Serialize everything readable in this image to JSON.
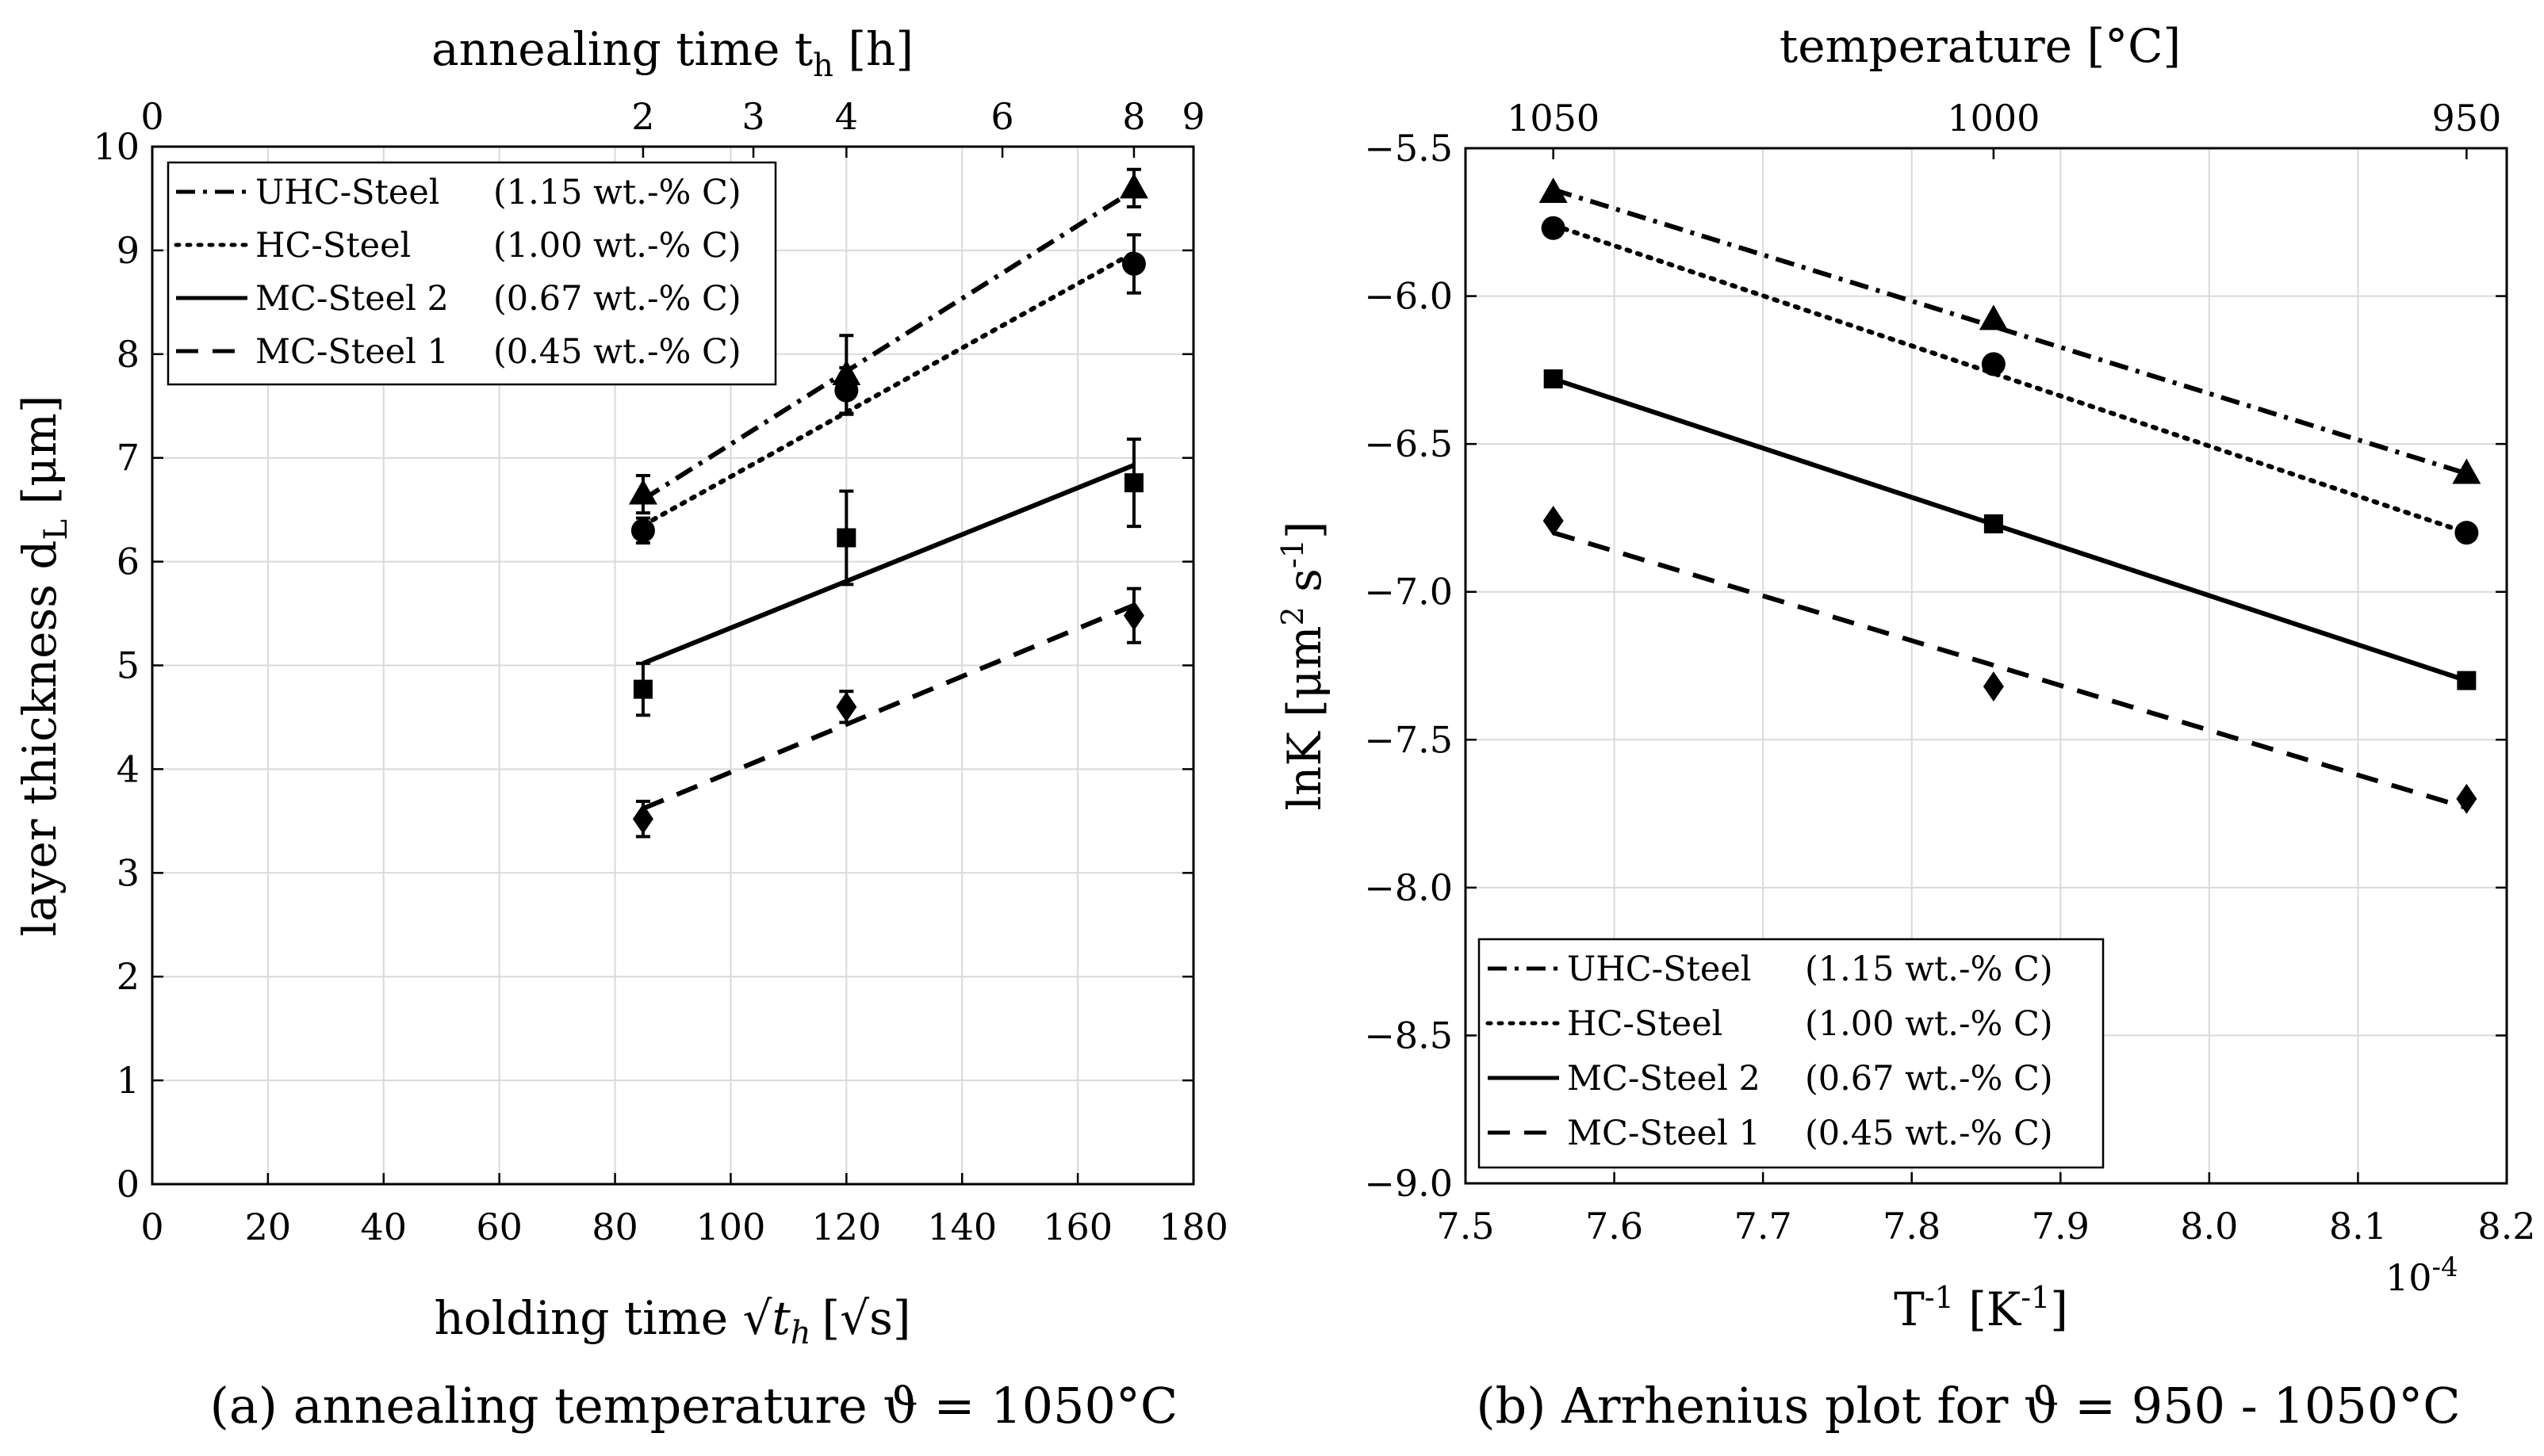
{
  "chart_data": [
    {
      "type": "line",
      "caption": "(a) annealing temperature ϑ = 1050°C",
      "xlabel_main": "holding time ",
      "xlabel_sqrt": "√",
      "xlabel_var": "t",
      "xlabel_sub": "h",
      "xlabel_unit": "[√s]",
      "ylabel_main": "layer thickness d",
      "ylabel_sub": "L",
      "ylabel_unit": " [μm]",
      "top_xlabel_main": "annealing time t",
      "top_xlabel_sub": "h",
      "top_xlabel_unit": " [h]",
      "xlim": [
        0,
        180
      ],
      "ylim": [
        0,
        10
      ],
      "x_ticks": [
        "0",
        "20",
        "40",
        "60",
        "80",
        "100",
        "120",
        "140",
        "160",
        "180"
      ],
      "y_ticks": [
        "0",
        "1",
        "2",
        "3",
        "4",
        "5",
        "6",
        "7",
        "8",
        "9",
        "10"
      ],
      "top_ticks": [
        {
          "label": "0",
          "x": 0
        },
        {
          "label": "2",
          "x": 84.85
        },
        {
          "label": "3",
          "x": 103.92
        },
        {
          "label": "4",
          "x": 120
        },
        {
          "label": "6",
          "x": 146.97
        },
        {
          "label": "8",
          "x": 169.71
        },
        {
          "label": "9",
          "x": 180
        }
      ],
      "legend": [
        {
          "name": "UHC-Steel",
          "comp": "(1.15 wt.-% C)",
          "style": "dashdot"
        },
        {
          "name": "HC-Steel",
          "comp": "(1.00 wt.-% C)",
          "style": "dotted"
        },
        {
          "name": "MC-Steel 2",
          "comp": "(0.67 wt.-% C)",
          "style": "solid"
        },
        {
          "name": "MC-Steel 1",
          "comp": "(0.45 wt.-% C)",
          "style": "dashed"
        }
      ],
      "series": [
        {
          "name": "UHC-Steel",
          "style": "dashdot",
          "marker": "triangle",
          "x": [
            84.85,
            120,
            169.71
          ],
          "y": [
            6.65,
            7.8,
            9.6
          ],
          "err": [
            0.18,
            0.38,
            0.18
          ],
          "fit_x": [
            84.85,
            169.71
          ],
          "fit_y": [
            6.6,
            9.58
          ]
        },
        {
          "name": "HC-Steel",
          "style": "dotted",
          "marker": "circle",
          "x": [
            84.85,
            120,
            169.71
          ],
          "y": [
            6.3,
            7.65,
            8.87
          ],
          "err": [
            0.12,
            0.22,
            0.28
          ],
          "fit_x": [
            84.85,
            169.71
          ],
          "fit_y": [
            6.35,
            8.98
          ]
        },
        {
          "name": "MC-Steel 2",
          "style": "solid",
          "marker": "square",
          "x": [
            84.85,
            120,
            169.71
          ],
          "y": [
            4.77,
            6.23,
            6.76
          ],
          "err": [
            0.25,
            0.45,
            0.42
          ],
          "fit_x": [
            84.85,
            169.71
          ],
          "fit_y": [
            5.02,
            6.93
          ]
        },
        {
          "name": "MC-Steel 1",
          "style": "dashed",
          "marker": "diamond",
          "x": [
            84.85,
            120,
            169.71
          ],
          "y": [
            3.52,
            4.6,
            5.48
          ],
          "err": [
            0.17,
            0.15,
            0.26
          ],
          "fit_x": [
            84.85,
            169.71
          ],
          "fit_y": [
            3.62,
            5.58
          ]
        }
      ]
    },
    {
      "type": "line",
      "caption": "(b) Arrhenius plot for ϑ = 950 - 1050°C",
      "xlabel_main": "T",
      "xlabel_sup": "-1",
      "xlabel_unit": " [K",
      "xlabel_unit_sup": "-1",
      "xlabel_unit_end": "]",
      "ylabel_main": "lnK [μm",
      "ylabel_sup1": "2",
      "ylabel_mid": " s",
      "ylabel_sup2": "-1",
      "ylabel_end": "]",
      "top_xlabel": "temperature [°C]",
      "exponent_base": "10",
      "exponent_pow": "-4",
      "xlim": [
        7.5,
        8.2
      ],
      "ylim": [
        -9.0,
        -5.5
      ],
      "x_ticks": [
        "7.5",
        "7.6",
        "7.7",
        "7.8",
        "7.9",
        "8.0",
        "8.1",
        "8.2"
      ],
      "y_ticks": [
        "−9.0",
        "−8.5",
        "−8.0",
        "−7.5",
        "−7.0",
        "−6.5",
        "−6.0",
        "−5.5"
      ],
      "top_ticks": [
        {
          "label": "1050",
          "x": 7.559
        },
        {
          "label": "1000",
          "x": 7.855
        },
        {
          "label": "950",
          "x": 8.173
        }
      ],
      "legend": [
        {
          "name": "UHC-Steel",
          "comp": "(1.15 wt.-% C)",
          "style": "dashdot"
        },
        {
          "name": "HC-Steel",
          "comp": "(1.00 wt.-% C)",
          "style": "dotted"
        },
        {
          "name": "MC-Steel 2",
          "comp": "(0.67 wt.-% C)",
          "style": "solid"
        },
        {
          "name": "MC-Steel 1",
          "comp": "(0.45 wt.-% C)",
          "style": "dashed"
        }
      ],
      "series": [
        {
          "name": "UHC-Steel",
          "style": "dashdot",
          "marker": "triangle",
          "x": [
            7.559,
            7.855,
            8.173
          ],
          "y": [
            -5.65,
            -6.08,
            -6.6
          ],
          "fit_x": [
            7.559,
            8.173
          ],
          "fit_y": [
            -5.64,
            -6.6
          ]
        },
        {
          "name": "HC-Steel",
          "style": "dotted",
          "marker": "circle",
          "x": [
            7.559,
            7.855,
            8.173
          ],
          "y": [
            -5.77,
            -6.23,
            -6.8
          ],
          "fit_x": [
            7.559,
            8.173
          ],
          "fit_y": [
            -5.76,
            -6.8
          ]
        },
        {
          "name": "MC-Steel 2",
          "style": "solid",
          "marker": "square",
          "x": [
            7.559,
            7.855,
            8.173
          ],
          "y": [
            -6.28,
            -6.77,
            -7.3
          ],
          "fit_x": [
            7.559,
            8.173
          ],
          "fit_y": [
            -6.28,
            -7.3
          ]
        },
        {
          "name": "MC-Steel 1",
          "style": "dashed",
          "marker": "diamond",
          "x": [
            7.559,
            7.855,
            8.173
          ],
          "y": [
            -6.76,
            -7.32,
            -7.7
          ],
          "fit_x": [
            7.559,
            8.173
          ],
          "fit_y": [
            -6.8,
            -7.73
          ]
        }
      ]
    }
  ]
}
